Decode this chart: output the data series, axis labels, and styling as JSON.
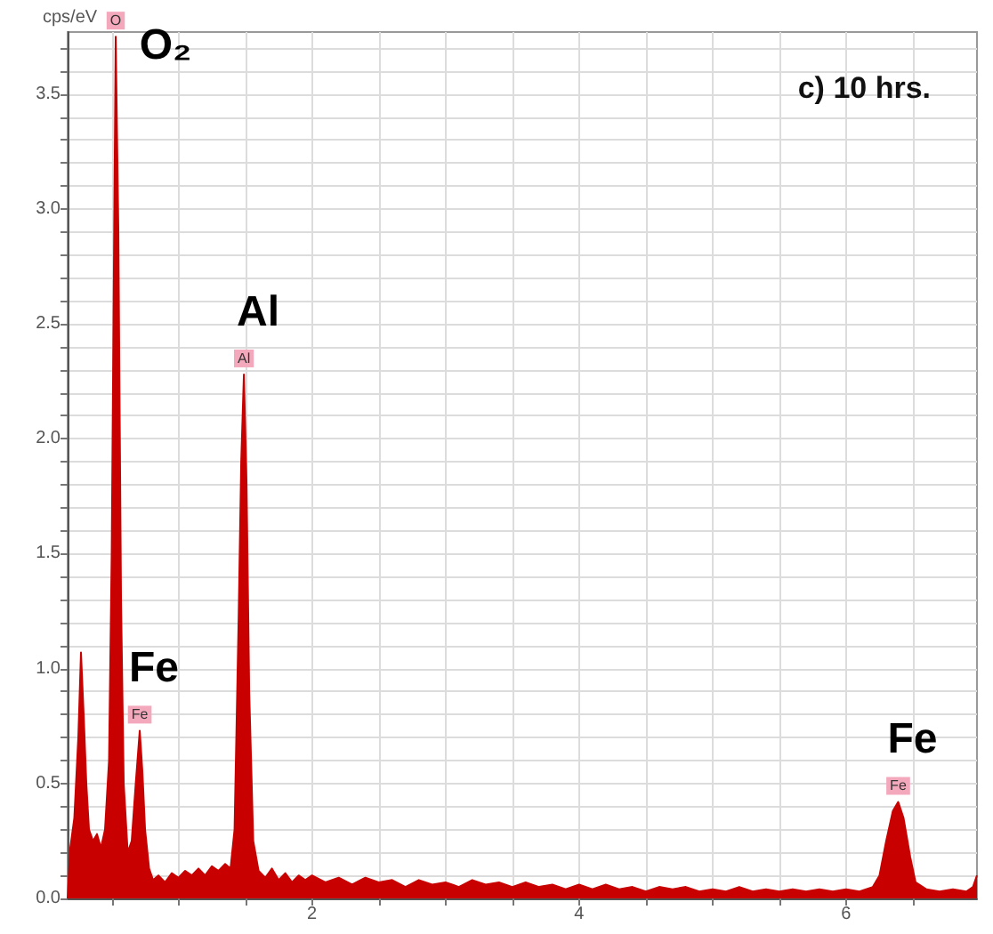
{
  "chart_data": {
    "type": "area",
    "title": "c) 10 hrs.",
    "ylabel": "cps/eV",
    "series": [
      {
        "color": "#c80000",
        "x": [
          0.17,
          0.19,
          0.22,
          0.25,
          0.27,
          0.29,
          0.31,
          0.33,
          0.36,
          0.39,
          0.42,
          0.45,
          0.48,
          0.5,
          0.52,
          0.53,
          0.55,
          0.57,
          0.59,
          0.62,
          0.65,
          0.68,
          0.71,
          0.73,
          0.75,
          0.78,
          0.81,
          0.85,
          0.9,
          0.95,
          1.0,
          1.05,
          1.1,
          1.15,
          1.2,
          1.25,
          1.3,
          1.35,
          1.39,
          1.42,
          1.45,
          1.47,
          1.49,
          1.51,
          1.53,
          1.56,
          1.6,
          1.65,
          1.7,
          1.75,
          1.8,
          1.85,
          1.9,
          1.95,
          2.0,
          2.1,
          2.2,
          2.3,
          2.4,
          2.5,
          2.6,
          2.7,
          2.8,
          2.9,
          3.0,
          3.1,
          3.2,
          3.3,
          3.4,
          3.5,
          3.6,
          3.7,
          3.8,
          3.9,
          4.0,
          4.1,
          4.2,
          4.3,
          4.4,
          4.5,
          4.6,
          4.7,
          4.8,
          4.9,
          5.0,
          5.1,
          5.2,
          5.3,
          5.4,
          5.5,
          5.6,
          5.7,
          5.8,
          5.9,
          6.0,
          6.1,
          6.2,
          6.25,
          6.3,
          6.35,
          6.39,
          6.43,
          6.48,
          6.52,
          6.6,
          6.7,
          6.8,
          6.9,
          6.95,
          6.98
        ],
        "values": [
          0.0,
          0.22,
          0.35,
          0.7,
          1.07,
          0.8,
          0.5,
          0.3,
          0.25,
          0.28,
          0.22,
          0.3,
          0.6,
          1.5,
          3.0,
          3.75,
          2.9,
          1.3,
          0.5,
          0.2,
          0.25,
          0.5,
          0.73,
          0.55,
          0.3,
          0.13,
          0.08,
          0.1,
          0.07,
          0.11,
          0.09,
          0.12,
          0.1,
          0.13,
          0.1,
          0.14,
          0.12,
          0.15,
          0.13,
          0.3,
          1.2,
          1.9,
          2.28,
          1.8,
          0.9,
          0.25,
          0.12,
          0.09,
          0.13,
          0.08,
          0.11,
          0.07,
          0.1,
          0.08,
          0.1,
          0.07,
          0.09,
          0.06,
          0.09,
          0.07,
          0.08,
          0.05,
          0.08,
          0.06,
          0.07,
          0.05,
          0.08,
          0.06,
          0.07,
          0.05,
          0.07,
          0.05,
          0.06,
          0.04,
          0.06,
          0.04,
          0.06,
          0.04,
          0.05,
          0.03,
          0.05,
          0.04,
          0.05,
          0.03,
          0.04,
          0.03,
          0.05,
          0.03,
          0.04,
          0.03,
          0.04,
          0.03,
          0.04,
          0.03,
          0.04,
          0.03,
          0.05,
          0.1,
          0.25,
          0.38,
          0.42,
          0.35,
          0.18,
          0.07,
          0.04,
          0.03,
          0.04,
          0.03,
          0.05,
          0.1
        ]
      }
    ],
    "xlim": [
      0.17,
      6.98
    ],
    "xticks": [
      {
        "value": 0.5,
        "label": null
      },
      {
        "value": 1,
        "label": null
      },
      {
        "value": 1.5,
        "label": null
      },
      2,
      {
        "value": 2.5,
        "label": null
      },
      {
        "value": 3,
        "label": null
      },
      {
        "value": 3.5,
        "label": null
      },
      4,
      {
        "value": 4.5,
        "label": null
      },
      {
        "value": 5,
        "label": null
      },
      {
        "value": 5.5,
        "label": null
      },
      6,
      {
        "value": 6.5,
        "label": null
      }
    ],
    "ylim": [
      0,
      3.77
    ],
    "yticks": [
      "0.0",
      {
        "value": 0.1,
        "label": null
      },
      {
        "value": 0.2,
        "label": null
      },
      {
        "value": 0.3,
        "label": null
      },
      {
        "value": 0.4,
        "label": null
      },
      {
        "value": 0.5,
        "label": "0.5"
      },
      {
        "value": 0.6,
        "label": null
      },
      {
        "value": 0.7,
        "label": null
      },
      {
        "value": 0.8,
        "label": null
      },
      {
        "value": 0.9,
        "label": null
      },
      {
        "value": 1.0,
        "label": "1.0"
      },
      {
        "value": 1.1,
        "label": null
      },
      {
        "value": 1.2,
        "label": null
      },
      {
        "value": 1.3,
        "label": null
      },
      {
        "value": 1.4,
        "label": null
      },
      {
        "value": 1.5,
        "label": "1.5"
      },
      {
        "value": 1.6,
        "label": null
      },
      {
        "value": 1.7,
        "label": null
      },
      {
        "value": 1.8,
        "label": null
      },
      {
        "value": 1.9,
        "label": null
      },
      {
        "value": 2.0,
        "label": "2.0"
      },
      {
        "value": 2.1,
        "label": null
      },
      {
        "value": 2.2,
        "label": null
      },
      {
        "value": 2.3,
        "label": null
      },
      {
        "value": 2.4,
        "label": null
      },
      {
        "value": 2.5,
        "label": "2.5"
      },
      {
        "value": 2.6,
        "label": null
      },
      {
        "value": 2.7,
        "label": null
      },
      {
        "value": 2.8,
        "label": null
      },
      {
        "value": 2.9,
        "label": null
      },
      {
        "value": 3.0,
        "label": "3.0"
      },
      {
        "value": 3.1,
        "label": null
      },
      {
        "value": 3.2,
        "label": null
      },
      {
        "value": 3.3,
        "label": null
      },
      {
        "value": 3.4,
        "label": null
      },
      {
        "value": 3.5,
        "label": "3.5"
      },
      {
        "value": 3.6,
        "label": null
      },
      {
        "value": 3.7,
        "label": null
      }
    ],
    "grid": true,
    "annotations": [
      {
        "text": "O",
        "x": 0.53,
        "y": 3.75
      },
      "O₂",
      {
        "text": "Al",
        "x": 1.49,
        "y": 2.28
      },
      "Al",
      {
        "text": "Fe",
        "x": 0.71,
        "y": 0.73
      },
      "Fe",
      {
        "text": "Fe",
        "x": 6.39,
        "y": 0.42
      },
      "Fe"
    ]
  }
}
